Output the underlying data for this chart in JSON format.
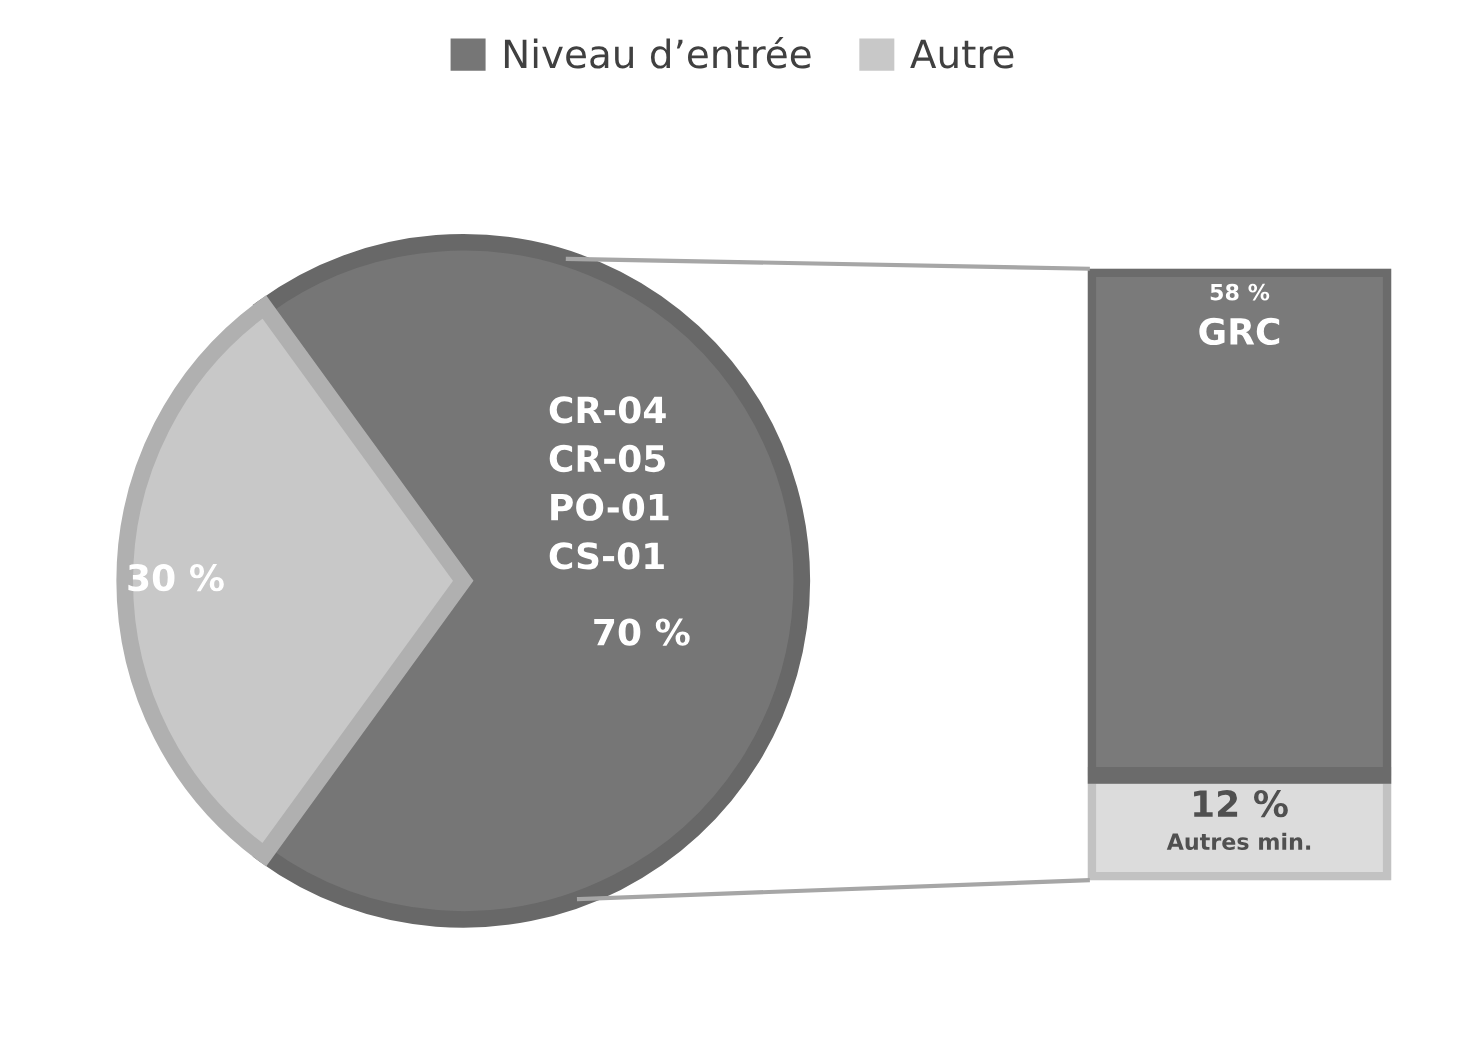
{
  "chart_data": [
    {
      "type": "pie",
      "categories": [
        "Niveau d’entrée",
        "Autre"
      ],
      "values": [
        70,
        30
      ],
      "colors": [
        "#767676",
        "#c8c8c8"
      ],
      "value_labels": [
        "70 %",
        "30 %"
      ],
      "legend": "top",
      "annotations": [
        "CR-04\nCR-05\nPO-01\nCS-01"
      ]
    },
    {
      "type": "bar",
      "stacked": true,
      "categories": [
        null
      ],
      "series": [
        {
          "name": "Autres min.",
          "color": "#dcdcdc",
          "values": [
            12
          ],
          "value_labels": [
            "12 %"
          ]
        },
        {
          "name": "GRC",
          "color": "#7a7a7a",
          "values": [
            58
          ],
          "value_labels": [
            "58 %"
          ]
        }
      ]
    }
  ]
}
